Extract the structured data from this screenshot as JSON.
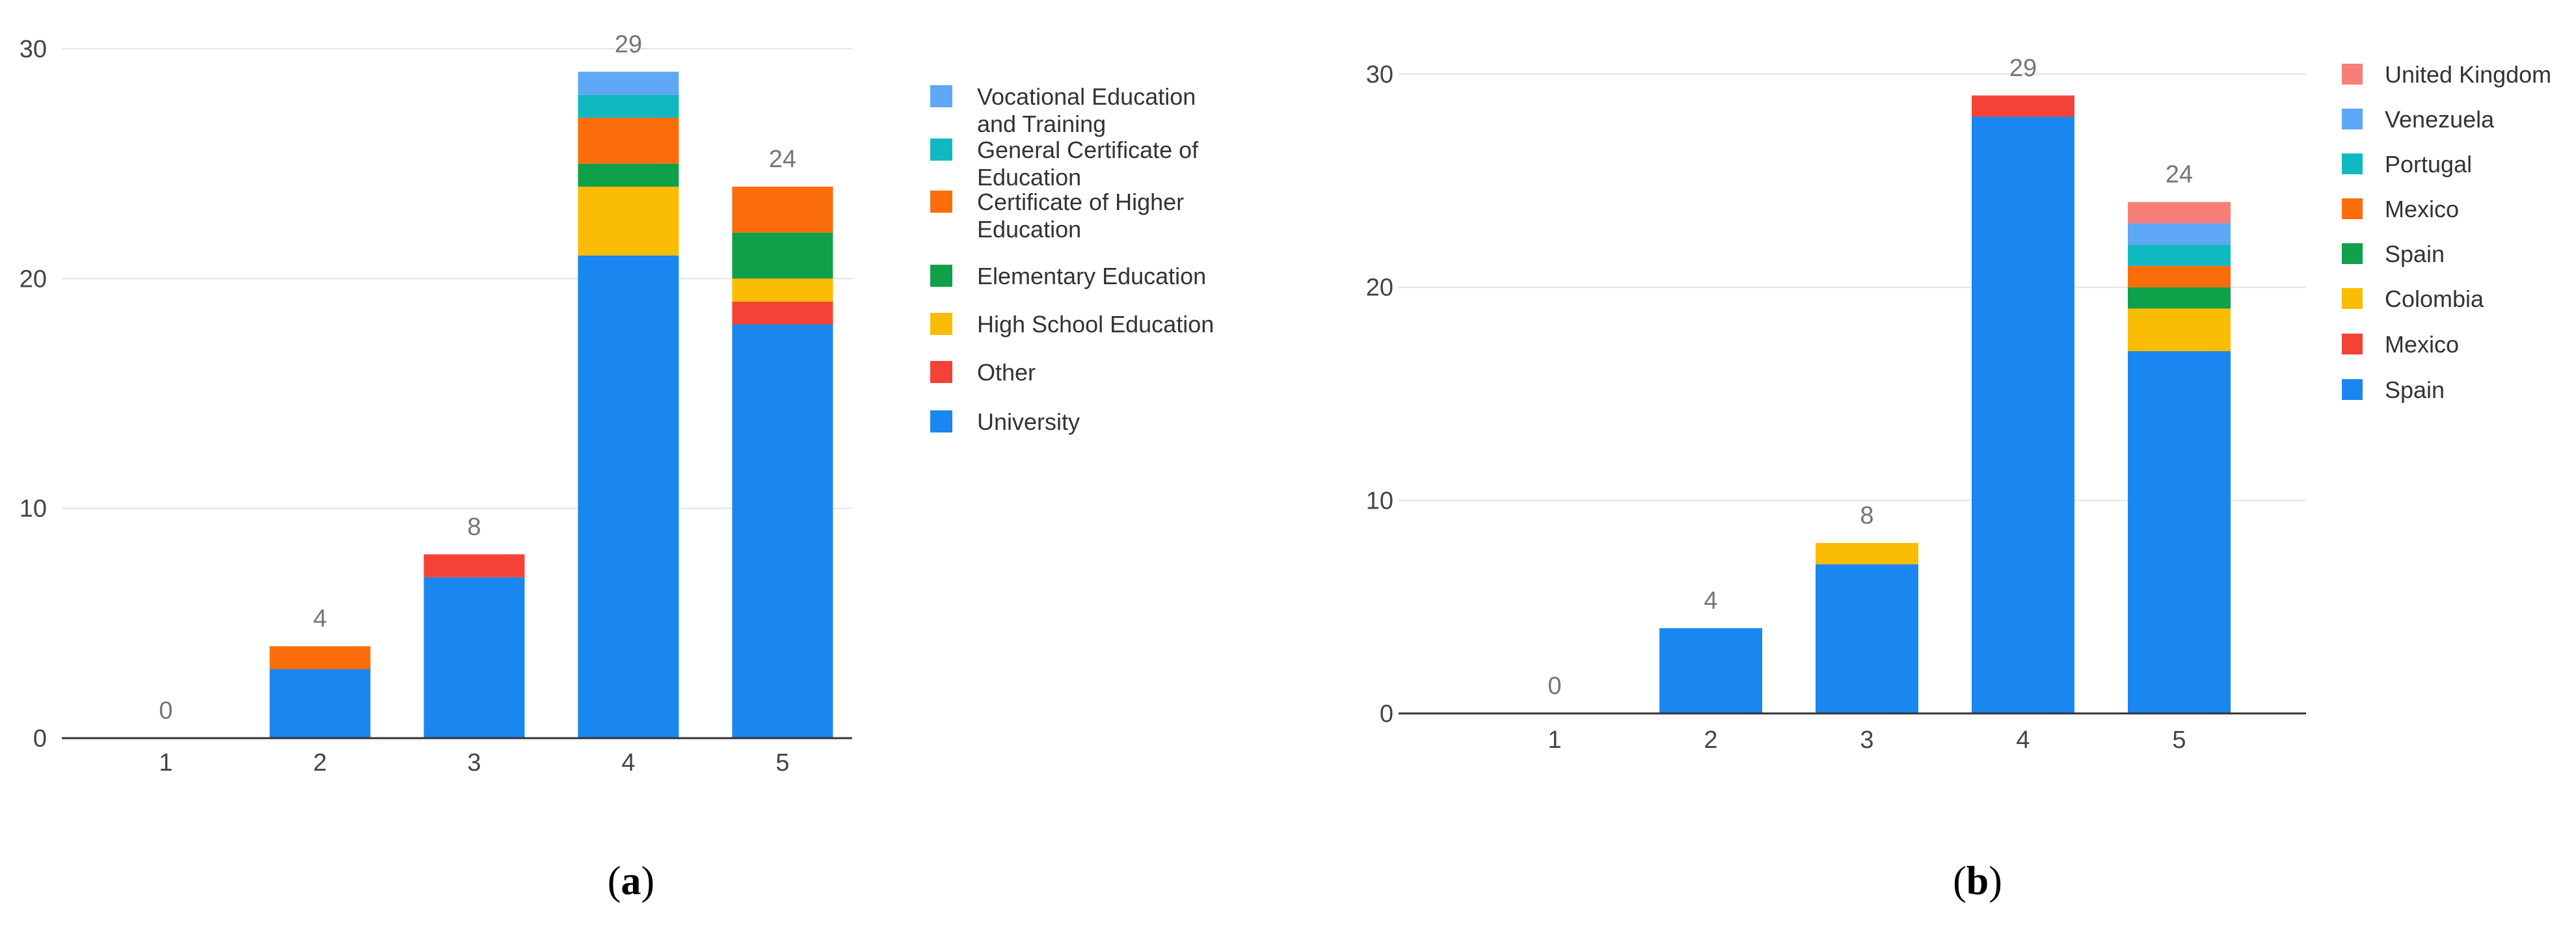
{
  "chart_data": [
    {
      "panel": "a",
      "type": "bar",
      "stacked": true,
      "categories": [
        "1",
        "2",
        "3",
        "4",
        "5"
      ],
      "ylim": [
        0,
        30
      ],
      "yticks": [
        0,
        10,
        20,
        30
      ],
      "grid": true,
      "legend_position": "right",
      "totals": [
        0,
        4,
        8,
        29,
        24
      ],
      "series": [
        {
          "name": "University",
          "color": "#1a86f0",
          "values": [
            0,
            3,
            7,
            21,
            18
          ]
        },
        {
          "name": "Other",
          "color": "#f44336",
          "values": [
            0,
            0,
            1,
            0,
            1
          ]
        },
        {
          "name": "High School Education",
          "color": "#fbbc04",
          "values": [
            0,
            0,
            0,
            3,
            1
          ]
        },
        {
          "name": "Elementary Education",
          "color": "#0fa04a",
          "values": [
            0,
            0,
            0,
            1,
            2
          ]
        },
        {
          "name": "Certificate of Higher Education",
          "color": "#fb6d0a",
          "values": [
            0,
            1,
            0,
            2,
            2
          ]
        },
        {
          "name": "General Certificate of Education",
          "color": "#10b9c2",
          "values": [
            0,
            0,
            0,
            1,
            0
          ]
        },
        {
          "name": "Vocational Education and Training",
          "color": "#5fa8f5",
          "values": [
            0,
            0,
            0,
            1,
            0
          ]
        }
      ],
      "legend_lines": [
        [
          "Vocational Education",
          "and Training"
        ],
        [
          "General Certificate of",
          "Education"
        ],
        [
          "Certificate of Higher",
          "Education"
        ],
        [
          "Elementary Education"
        ],
        [
          "High School Education"
        ],
        [
          "Other"
        ],
        [
          "University"
        ]
      ],
      "caption": {
        "open": "(",
        "letter": "a",
        "close": ")"
      }
    },
    {
      "panel": "b",
      "type": "bar",
      "stacked": true,
      "categories": [
        "1",
        "2",
        "3",
        "4",
        "5"
      ],
      "ylim": [
        0,
        30
      ],
      "yticks": [
        0,
        10,
        20,
        30
      ],
      "grid": true,
      "legend_position": "right",
      "totals": [
        0,
        4,
        8,
        29,
        24
      ],
      "series": [
        {
          "name": "Spain",
          "color": "#1a86f0",
          "values": [
            0,
            4,
            7,
            28,
            17
          ]
        },
        {
          "name": "Mexico",
          "color": "#f44336",
          "values": [
            0,
            0,
            0,
            1,
            0
          ]
        },
        {
          "name": "Colombia",
          "color": "#fbbc04",
          "values": [
            0,
            0,
            1,
            0,
            2
          ]
        },
        {
          "name": "Spain",
          "color": "#0fa04a",
          "values": [
            0,
            0,
            0,
            0,
            1
          ]
        },
        {
          "name": "Mexico",
          "color": "#fb6d0a",
          "values": [
            0,
            0,
            0,
            0,
            1
          ]
        },
        {
          "name": "Portugal",
          "color": "#10b9c2",
          "values": [
            0,
            0,
            0,
            0,
            1
          ]
        },
        {
          "name": "Venezuela",
          "color": "#5fa8f5",
          "values": [
            0,
            0,
            0,
            0,
            1
          ]
        },
        {
          "name": "United Kingdom",
          "color": "#f77f77",
          "values": [
            0,
            0,
            0,
            0,
            1
          ]
        }
      ],
      "legend_lines": [
        [
          "United Kingdom"
        ],
        [
          "Venezuela"
        ],
        [
          "Portugal"
        ],
        [
          "Mexico"
        ],
        [
          "Spain"
        ],
        [
          "Colombia"
        ],
        [
          "Mexico"
        ],
        [
          "Spain"
        ]
      ],
      "caption": {
        "open": "(",
        "letter": "b",
        "close": ")"
      }
    }
  ]
}
